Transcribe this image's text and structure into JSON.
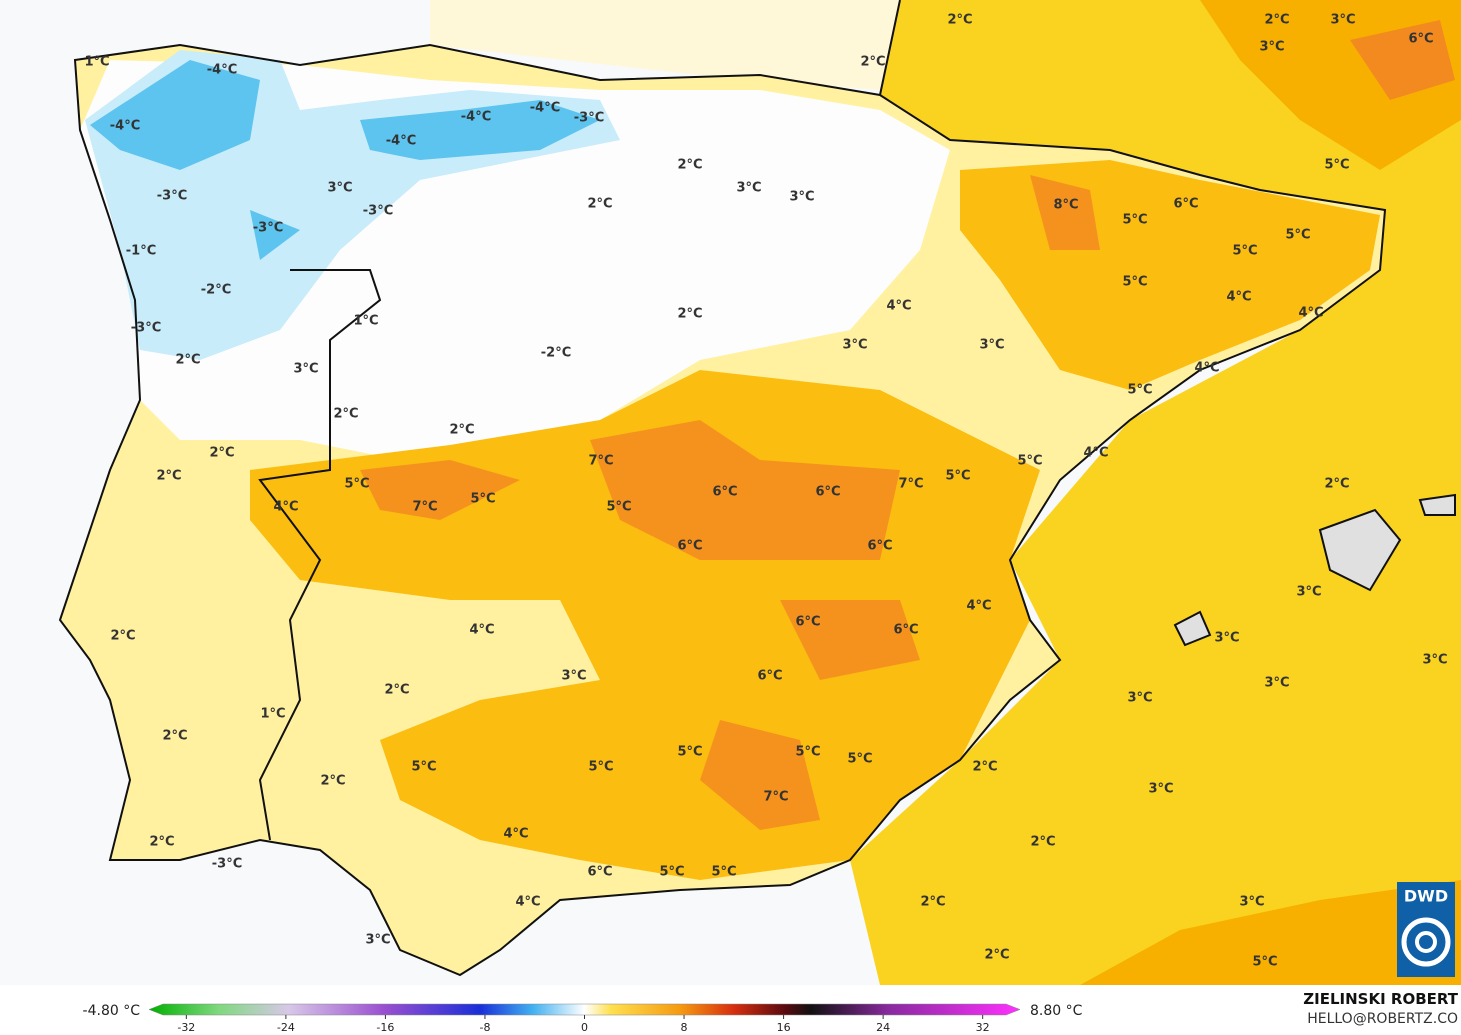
{
  "map": {
    "labels": [
      "1°C",
      "-4°C",
      "-4°C",
      "-4°C",
      "-4°C",
      "-4°C",
      "-3°C",
      "2°C",
      "3°C",
      "3°C",
      "2°C",
      "3°C",
      "-3°C",
      "-3°C",
      "-3°C",
      "-1°C",
      "-2°C",
      "-3°C",
      "1°C",
      "2°C",
      "-2°C",
      "2°C",
      "3°C",
      "2°C",
      "2°C",
      "2°C",
      "2°C",
      "4°C",
      "5°C",
      "7°C",
      "5°C",
      "7°C",
      "5°C",
      "6°C",
      "6°C",
      "6°C",
      "6°C",
      "7°C",
      "5°C",
      "5°C",
      "4°C",
      "2°C",
      "2°C",
      "2°C",
      "3°C",
      "3°C",
      "6°C",
      "5°C",
      "8°C",
      "5°C",
      "6°C",
      "5°C",
      "5°C",
      "5°C",
      "4°C",
      "4°C",
      "4°C",
      "3°C",
      "3°C",
      "4°C",
      "5°C",
      "2°C",
      "3°C",
      "3°C",
      "3°C",
      "3°C",
      "3°C",
      "4°C",
      "6°C",
      "6°C",
      "4°C",
      "3°C",
      "6°C",
      "2°C",
      "1°C",
      "2°C",
      "2°C",
      "5°C",
      "5°C",
      "5°C",
      "5°C",
      "5°C",
      "2°C",
      "7°C",
      "2°C",
      "3°C",
      "2°C",
      "4°C",
      "2°C",
      "-3°C",
      "6°C",
      "5°C",
      "5°C",
      "4°C",
      "2°C",
      "3°C",
      "3°C",
      "2°C",
      "5°C"
    ]
  },
  "colorbar": {
    "lim": [
      -35,
      35
    ],
    "ticks": [
      -32,
      -24,
      -16,
      -8,
      0,
      8,
      16,
      24,
      32
    ],
    "min_label": "-4.80 °C",
    "max_label": "8.80 °C"
  },
  "credit": {
    "author": "ZIELINSKI ROBERT",
    "email": "HELLO@ROBERTZ.CO",
    "logo": "DWD"
  }
}
